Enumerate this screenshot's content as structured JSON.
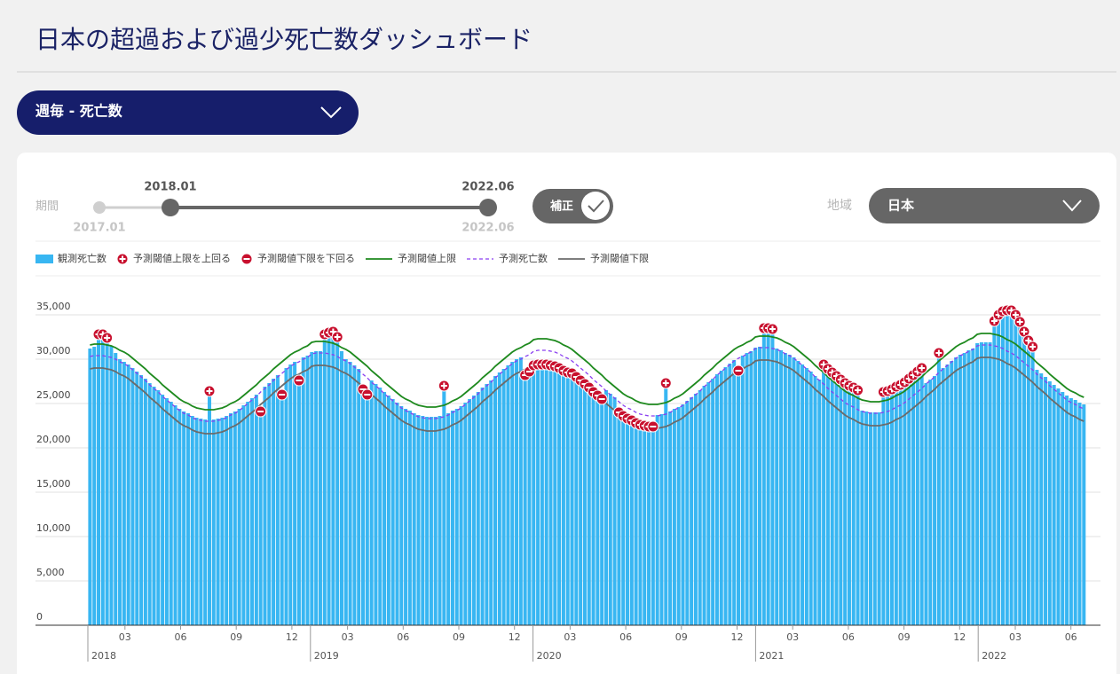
{
  "header": {
    "title": "日本の超過および過少死亡数ダッシュボード"
  },
  "view_selector": "週毎 - 死亡数",
  "controls": {
    "period_label": "期間",
    "range_min": "2017.01",
    "range_start": "2018.01",
    "range_end": "2022.06",
    "range_max": "2022.06",
    "correction": "補正",
    "region_label": "地域",
    "region": "日本"
  },
  "chart_data": {
    "type": "combo",
    "ylim": [
      0,
      35000
    ],
    "yticks": [
      0,
      {
        "value": 5000,
        "label": "5,000"
      },
      {
        "value": 10000,
        "label": "10,000"
      },
      {
        "value": 15000,
        "label": "15,000"
      },
      {
        "value": 20000,
        "label": "20,000"
      },
      {
        "value": 25000,
        "label": "25,000"
      },
      {
        "value": 30000,
        "label": "30,000"
      },
      {
        "value": 35000,
        "label": "35,000"
      }
    ],
    "grid": true,
    "xticks": [
      {
        "year": "2018",
        "months": [
          "03",
          "06",
          "09",
          "12"
        ]
      },
      {
        "year": "2019",
        "months": [
          "03",
          "06",
          "09",
          "12"
        ]
      },
      {
        "year": "2020",
        "months": [
          "03",
          "06",
          "09",
          "12"
        ]
      },
      {
        "year": "2021",
        "months": [
          "03",
          "06",
          "09",
          "12"
        ]
      },
      {
        "year": "2022",
        "months": [
          "03",
          "06"
        ]
      }
    ],
    "markers": [
      {
        "name": "予測閾値上限を上回る",
        "symbol": "plus",
        "color": "#c8102e"
      },
      {
        "name": "予測閾値下限を下回る",
        "symbol": "minus",
        "color": "#c8102e"
      }
    ],
    "series": [
      {
        "name": "観測死亡数",
        "type": "bar",
        "color": "#38b6f2",
        "values": [
          31200,
          31400,
          32200,
          32200,
          31800,
          31500,
          30700,
          30000,
          29700,
          29400,
          29000,
          28600,
          28200,
          27800,
          27300,
          26900,
          26500,
          26000,
          25600,
          25200,
          24800,
          24400,
          24100,
          23900,
          23600,
          23400,
          23300,
          23200,
          25800,
          23200,
          23300,
          23400,
          23600,
          23900,
          24100,
          24400,
          24800,
          25200,
          25600,
          26000,
          23500,
          26900,
          27300,
          27800,
          28200,
          25400,
          29000,
          29400,
          29700,
          27000,
          30200,
          30400,
          30800,
          30900,
          30900,
          32200,
          32400,
          32500,
          31900,
          30900,
          30000,
          29700,
          29300,
          28900,
          26000,
          25400,
          27600,
          27200,
          26800,
          26300,
          25900,
          25500,
          25100,
          24700,
          24400,
          24200,
          23900,
          23700,
          23600,
          23500,
          23500,
          23500,
          23600,
          26400,
          23900,
          24200,
          24400,
          24700,
          25100,
          25500,
          25900,
          26300,
          26800,
          27200,
          27600,
          28100,
          28500,
          28900,
          29300,
          29700,
          30000,
          30200,
          27600,
          28000,
          28700,
          28800,
          28800,
          28800,
          28700,
          28600,
          28400,
          28100,
          27900,
          27800,
          27400,
          27000,
          26600,
          26200,
          25700,
          25300,
          24900,
          26500,
          26100,
          25700,
          23400,
          23000,
          22700,
          22500,
          22200,
          22000,
          21900,
          21800,
          21800,
          23700,
          23800,
          26700,
          24100,
          24400,
          24600,
          24900,
          25300,
          25700,
          26100,
          26500,
          27000,
          27400,
          27800,
          28300,
          28700,
          29100,
          29500,
          29900,
          28100,
          30400,
          30700,
          30900,
          31300,
          31400,
          32900,
          32900,
          32800,
          31200,
          31000,
          30700,
          30500,
          30200,
          29800,
          29400,
          29000,
          28600,
          28100,
          27700,
          28800,
          28300,
          27900,
          27500,
          27100,
          26700,
          26400,
          26200,
          25900,
          24200,
          24100,
          24000,
          24000,
          24000,
          25700,
          25800,
          26000,
          26300,
          26500,
          26800,
          27200,
          27600,
          28000,
          28400,
          27300,
          27700,
          28100,
          30100,
          29000,
          29400,
          29800,
          30200,
          30500,
          30700,
          31000,
          31200,
          31800,
          31900,
          31900,
          31900,
          33700,
          34400,
          34800,
          34900,
          34900,
          34400,
          33600,
          32500,
          31500,
          30800,
          28800,
          28400,
          28000,
          27500,
          27100,
          26700,
          26300,
          25900,
          25600,
          25400,
          25100,
          24900
        ]
      },
      {
        "name": "予測閾値上限",
        "type": "line",
        "color": "#1e8a1e",
        "values": [
          31600,
          31700,
          31700,
          31700,
          31600,
          31500,
          31300,
          31000,
          30800,
          30500,
          30100,
          29700,
          29300,
          28900,
          28400,
          28000,
          27600,
          27100,
          26700,
          26300,
          25900,
          25500,
          25200,
          25000,
          24700,
          24500,
          24400,
          24300,
          24300,
          24300,
          24400,
          24500,
          24700,
          25000,
          25200,
          25500,
          25900,
          26300,
          26700,
          27100,
          27600,
          28000,
          28400,
          28900,
          29300,
          29700,
          30100,
          30500,
          30800,
          31000,
          31300,
          31500,
          31900,
          32000,
          32000,
          32000,
          31900,
          31800,
          31600,
          31300,
          31100,
          30800,
          30400,
          30000,
          29600,
          29200,
          28700,
          28300,
          27900,
          27400,
          27000,
          26600,
          26200,
          25800,
          25500,
          25300,
          25000,
          24800,
          24700,
          24600,
          24600,
          24600,
          24700,
          24800,
          25000,
          25300,
          25500,
          25800,
          26200,
          26600,
          27000,
          27400,
          27900,
          28300,
          28700,
          29200,
          29600,
          30000,
          30400,
          30800,
          31100,
          31300,
          31600,
          31800,
          32200,
          32300,
          32300,
          32300,
          32200,
          32100,
          31900,
          31600,
          31400,
          31100,
          30700,
          30300,
          29900,
          29500,
          29000,
          28600,
          28200,
          27700,
          27300,
          26900,
          26500,
          26100,
          25800,
          25600,
          25300,
          25100,
          25000,
          24900,
          24900,
          24900,
          25000,
          25100,
          25300,
          25600,
          25800,
          26100,
          26500,
          26900,
          27300,
          27700,
          28200,
          28600,
          29000,
          29500,
          29900,
          30300,
          30700,
          31100,
          31400,
          31600,
          31900,
          32100,
          32500,
          32600,
          32600,
          32600,
          32500,
          32400,
          32200,
          31900,
          31700,
          31400,
          31000,
          30600,
          30200,
          29800,
          29300,
          28900,
          28500,
          28000,
          27600,
          27200,
          26800,
          26400,
          26100,
          25900,
          25600,
          25400,
          25300,
          25200,
          25200,
          25200,
          25300,
          25400,
          25600,
          25900,
          26100,
          26400,
          26800,
          27200,
          27600,
          28000,
          28500,
          28900,
          29300,
          29800,
          30200,
          30600,
          31000,
          31400,
          31700,
          31900,
          32200,
          32400,
          32800,
          32900,
          32900,
          32900,
          32800,
          32700,
          32500,
          32200,
          32000,
          31700,
          31300,
          30900,
          30500,
          30100,
          29600,
          29200,
          28800,
          28300,
          27900,
          27500,
          27100,
          26700,
          26400,
          26200,
          25900,
          25700
        ]
      },
      {
        "name": "予測死亡数",
        "type": "line",
        "dashed": true,
        "color": "#8a3ff0",
        "values": [
          30300,
          30400,
          30400,
          30400,
          30300,
          30200,
          30000,
          29700,
          29500,
          29200,
          28800,
          28400,
          28000,
          27600,
          27100,
          26700,
          26300,
          25800,
          25400,
          25000,
          24600,
          24200,
          23900,
          23700,
          23400,
          23200,
          23100,
          23000,
          23000,
          23000,
          23100,
          23200,
          23400,
          23700,
          23900,
          24200,
          24600,
          25000,
          25400,
          25800,
          26300,
          26700,
          27100,
          27600,
          28000,
          28400,
          28800,
          29200,
          29500,
          29700,
          30000,
          30200,
          30600,
          30700,
          30700,
          30700,
          30600,
          30500,
          30300,
          30000,
          29800,
          29500,
          29100,
          28700,
          28300,
          27900,
          27400,
          27000,
          26600,
          26100,
          25700,
          25300,
          24900,
          24500,
          24200,
          24000,
          23700,
          23500,
          23400,
          23300,
          23300,
          23300,
          23400,
          23500,
          23700,
          24000,
          24200,
          24500,
          24900,
          25300,
          25700,
          26100,
          26600,
          27000,
          27400,
          27900,
          28300,
          28700,
          29100,
          29500,
          29800,
          30000,
          30300,
          30500,
          30900,
          31000,
          31000,
          31000,
          30900,
          30800,
          30600,
          30300,
          30100,
          29800,
          29400,
          29000,
          28600,
          28200,
          27700,
          27300,
          26900,
          26400,
          26000,
          25600,
          25200,
          24800,
          24500,
          24300,
          24000,
          23800,
          23700,
          23600,
          23600,
          23600,
          23700,
          23800,
          24000,
          24300,
          24500,
          24800,
          25200,
          25600,
          26000,
          26400,
          26900,
          27300,
          27700,
          28200,
          28600,
          29000,
          29400,
          29800,
          30100,
          30300,
          30600,
          30800,
          31200,
          31300,
          31300,
          31300,
          31200,
          31100,
          30900,
          30600,
          30400,
          30100,
          29700,
          29300,
          28900,
          28500,
          28000,
          27600,
          27200,
          26700,
          26300,
          25900,
          25500,
          25100,
          24800,
          24600,
          24300,
          24100,
          24000,
          23900,
          23900,
          23900,
          24000,
          24100,
          24300,
          24600,
          24800,
          25100,
          25500,
          25900,
          26300,
          26700,
          27200,
          27600,
          28000,
          28500,
          28900,
          29300,
          29700,
          30100,
          30400,
          30600,
          30900,
          31100,
          31500,
          31600,
          31600,
          31600,
          31500,
          31400,
          31200,
          30900,
          30700,
          30400,
          30000,
          29600,
          29200,
          28800,
          28300,
          27900,
          27500,
          27000,
          26600,
          26200,
          25800,
          25400,
          25100,
          24900,
          24600,
          24400
        ]
      },
      {
        "name": "予測閾値下限",
        "type": "line",
        "color": "#6b6b6b",
        "values": [
          28900,
          29000,
          29000,
          29000,
          28900,
          28800,
          28600,
          28300,
          28100,
          27800,
          27400,
          27000,
          26600,
          26200,
          25700,
          25300,
          24900,
          24400,
          24000,
          23600,
          23200,
          22800,
          22500,
          22300,
          22000,
          21800,
          21700,
          21600,
          21600,
          21600,
          21700,
          21800,
          22000,
          22300,
          22500,
          22800,
          23200,
          23600,
          24000,
          24400,
          24900,
          25300,
          25700,
          26200,
          26600,
          27000,
          27400,
          27800,
          28100,
          28300,
          28600,
          28800,
          29200,
          29300,
          29300,
          29300,
          29200,
          29100,
          28900,
          28600,
          28400,
          28100,
          27700,
          27300,
          26900,
          26500,
          26000,
          25600,
          25200,
          24700,
          24300,
          23900,
          23500,
          23100,
          22800,
          22600,
          22300,
          22100,
          22000,
          21900,
          21900,
          21900,
          22000,
          22100,
          22300,
          22600,
          22800,
          23100,
          23500,
          23900,
          24300,
          24700,
          25200,
          25600,
          26000,
          26500,
          26900,
          27300,
          27700,
          28100,
          28400,
          28600,
          28900,
          29100,
          29500,
          29600,
          29600,
          29600,
          29500,
          29400,
          29200,
          28900,
          28700,
          28400,
          28000,
          27600,
          27200,
          26800,
          26300,
          25900,
          25500,
          25000,
          24600,
          24200,
          23800,
          23400,
          23100,
          22900,
          22600,
          22400,
          22300,
          22200,
          22200,
          22200,
          22300,
          22400,
          22600,
          22900,
          23100,
          23400,
          23800,
          24200,
          24600,
          25000,
          25500,
          25900,
          26300,
          26800,
          27200,
          27600,
          28000,
          28400,
          28700,
          28900,
          29200,
          29400,
          29800,
          29900,
          29900,
          29900,
          29800,
          29700,
          29500,
          29200,
          29000,
          28700,
          28300,
          27900,
          27500,
          27100,
          26600,
          26200,
          25800,
          25300,
          24900,
          24500,
          24100,
          23700,
          23400,
          23200,
          22900,
          22700,
          22600,
          22500,
          22500,
          22500,
          22600,
          22700,
          22900,
          23200,
          23400,
          23700,
          24100,
          24500,
          24900,
          25300,
          25800,
          26200,
          26600,
          27100,
          27500,
          27900,
          28300,
          28700,
          29000,
          29200,
          29500,
          29700,
          30100,
          30200,
          30200,
          30200,
          30100,
          30000,
          29800,
          29500,
          29300,
          29000,
          28600,
          28200,
          27800,
          27400,
          26900,
          26500,
          26100,
          25600,
          25200,
          24800,
          24400,
          24000,
          23700,
          23500,
          23200,
          23000
        ]
      }
    ]
  }
}
